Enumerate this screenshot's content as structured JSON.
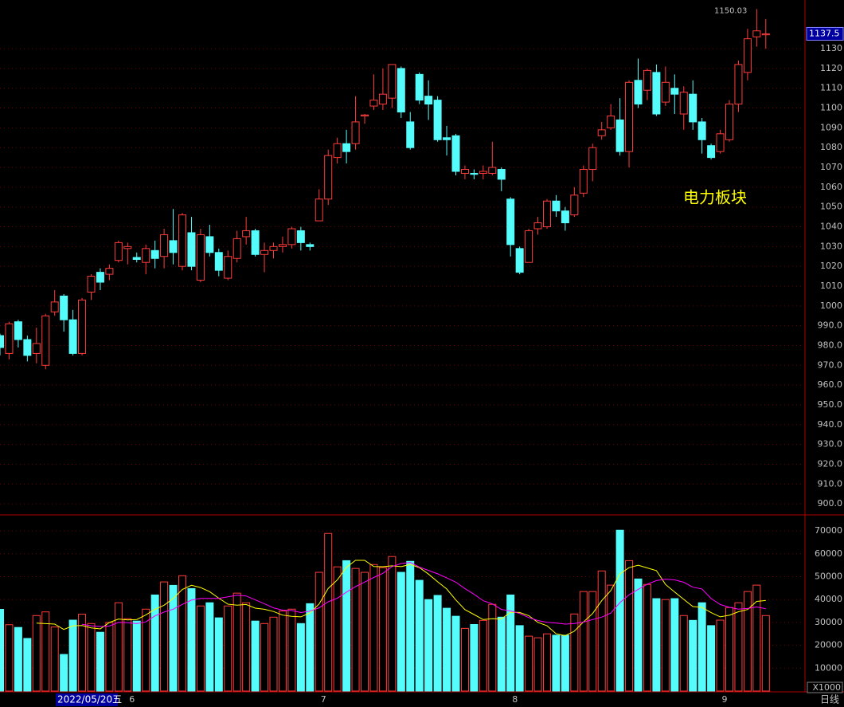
{
  "chart_data": [
    {
      "type": "candlestick",
      "categories": [
        null,
        null,
        null,
        null,
        null,
        null,
        null,
        null,
        null,
        null,
        null,
        null,
        null,
        null,
        "6",
        null,
        null,
        null,
        null,
        null,
        null,
        null,
        null,
        null,
        null,
        null,
        null,
        null,
        null,
        null,
        null,
        null,
        null,
        null,
        null,
        "7",
        null,
        null,
        null,
        null,
        null,
        null,
        null,
        null,
        null,
        null,
        null,
        null,
        null,
        null,
        null,
        null,
        null,
        null,
        null,
        null,
        "8",
        null,
        null,
        null,
        null,
        null,
        null,
        null,
        null,
        null,
        null,
        null,
        null,
        null,
        null,
        null,
        null,
        null,
        null,
        null,
        null,
        null,
        null,
        "9",
        null,
        null,
        null,
        null,
        null
      ],
      "open": [
        985,
        976,
        992,
        983,
        976,
        970,
        997,
        1005,
        993,
        976,
        1007,
        1017,
        1016,
        1023,
        1029,
        1024.5,
        1022,
        1028,
        1025,
        1033,
        1020,
        1037,
        1013,
        1035,
        1027,
        1014,
        1024,
        1035,
        1038,
        1026,
        1028,
        1030,
        1031,
        1038,
        1031,
        1043,
        1054,
        1075,
        1082,
        1082,
        1096,
        1101,
        1102,
        1105,
        1120,
        1093,
        1117,
        1106,
        1104,
        1085,
        1086,
        1067,
        1067,
        1067,
        1067,
        1069,
        1054,
        1029,
        1022,
        1039,
        1040,
        1053,
        1048,
        1046,
        1057,
        1069,
        1086,
        1090,
        1094,
        1078,
        1114,
        1109,
        1118,
        1103,
        1110,
        1097,
        1107,
        1093,
        1081,
        1078,
        1084,
        1102,
        1118,
        1136,
        1137
      ],
      "high": [
        986,
        992,
        993,
        985,
        989,
        996,
        1008,
        1006,
        998,
        1004,
        1016,
        1019,
        1021,
        1033,
        1032,
        1027,
        1031,
        1033,
        1039,
        1049,
        1047,
        1045,
        1039,
        1041,
        1029,
        1028,
        1038,
        1045,
        1039,
        1032,
        1032,
        1035,
        1040,
        1040,
        1032,
        1059,
        1079,
        1085,
        1089,
        1106,
        1097,
        1117,
        1120,
        1122,
        1121,
        1098,
        1118,
        1114,
        1106,
        1091,
        1087,
        1071,
        1069,
        1071,
        1083,
        1070,
        1055,
        1030,
        1039,
        1045,
        1054,
        1056,
        1050,
        1060,
        1071,
        1082,
        1093,
        1102,
        1105,
        1114,
        1125,
        1120,
        1122,
        1121,
        1117,
        1111,
        1114,
        1095,
        1082,
        1089,
        1104,
        1124,
        1140,
        1150.03,
        1145
      ],
      "low": [
        975,
        973,
        979,
        972,
        971,
        968,
        995,
        987,
        975,
        975,
        1003,
        1008,
        1013,
        1022,
        1021,
        1022,
        1016,
        1019,
        1019,
        1021,
        1018,
        1018,
        1012,
        1025,
        1015,
        1013,
        1022,
        1031,
        1025,
        1017,
        1024,
        1027,
        1029,
        1028,
        1028,
        1043,
        1051,
        1072,
        1072,
        1079,
        1092,
        1099,
        1099,
        1100,
        1095,
        1079,
        1102,
        1094,
        1083,
        1076,
        1066,
        1064,
        1064,
        1064,
        1066,
        1058,
        1025,
        1016,
        1022,
        1036,
        1039,
        1045,
        1038,
        1045,
        1055,
        1063,
        1084,
        1089,
        1076,
        1070,
        1100,
        1104,
        1096,
        1101,
        1097,
        1089,
        1089,
        1077,
        1074,
        1077,
        1083,
        1098,
        1114,
        1131,
        1130
      ],
      "close": [
        979,
        991,
        983,
        975,
        981,
        995,
        1002,
        993,
        976,
        1003,
        1015,
        1012,
        1019,
        1032,
        1030,
        1023.5,
        1029,
        1024,
        1036,
        1027,
        1046,
        1020,
        1036,
        1027,
        1018,
        1025,
        1034,
        1038,
        1026,
        1028,
        1030,
        1031,
        1039,
        1032,
        1030,
        1054,
        1076,
        1082,
        1078,
        1093,
        1096.5,
        1104,
        1107,
        1122,
        1098,
        1080,
        1104,
        1102,
        1084,
        1084,
        1068,
        1069,
        1066.5,
        1068,
        1070,
        1064,
        1031,
        1017,
        1038,
        1042,
        1053,
        1048,
        1042,
        1056,
        1069,
        1080,
        1089,
        1096,
        1078,
        1113,
        1102,
        1119,
        1097,
        1113,
        1107,
        1108,
        1093,
        1084,
        1075,
        1087,
        1102,
        1122,
        1135,
        1139,
        1137.5
      ],
      "up_color": "#ff3c3c",
      "down_color": "#54fcfc",
      "ylim": [
        894.8,
        1154.6
      ],
      "yticks": [
        {
          "value": 900,
          "label": "900.0"
        },
        {
          "value": 910,
          "label": "910.0"
        },
        {
          "value": 920,
          "label": "920.0"
        },
        {
          "value": 930,
          "label": "930.0"
        },
        {
          "value": 940,
          "label": "940.0"
        },
        {
          "value": 950,
          "label": "950.0"
        },
        {
          "value": 960,
          "label": "960.0"
        },
        {
          "value": 970,
          "label": "970.0"
        },
        {
          "value": 980,
          "label": "980.0"
        },
        {
          "value": 990,
          "label": "990.0"
        },
        1000,
        1010,
        1020,
        1030,
        1040,
        1050,
        1060,
        1070,
        1080,
        1090,
        1100,
        1110,
        1120,
        1130
      ],
      "grid": true,
      "last_price": 1137.5,
      "max_label": 1150.03,
      "cursor_date": "2022/05/20五",
      "annotation": "电力板块",
      "period": "日线"
    },
    {
      "type": "bar",
      "values": [
        35700,
        29000,
        27800,
        23000,
        33000,
        34600,
        28000,
        16000,
        31000,
        33600,
        29500,
        25700,
        30000,
        38600,
        31600,
        30600,
        35800,
        42000,
        47700,
        46200,
        50400,
        44800,
        37200,
        38600,
        32000,
        37200,
        42800,
        38600,
        30600,
        29500,
        32300,
        35000,
        35800,
        29500,
        38200,
        51900,
        68900,
        54300,
        57000,
        53600,
        51900,
        55300,
        54000,
        58800,
        51900,
        56700,
        48400,
        40000,
        41800,
        36200,
        32700,
        27400,
        29100,
        30900,
        37900,
        32300,
        42000,
        28600,
        24000,
        23300,
        25000,
        24400,
        24400,
        33700,
        43500,
        43500,
        52500,
        46300,
        70300,
        57000,
        49000,
        46600,
        40400,
        40000,
        40400,
        33000,
        30900,
        38600,
        28600,
        31000,
        36500,
        38600,
        43500,
        46300,
        33000
      ],
      "ylim": [
        0,
        76300
      ],
      "yticks": [
        10000,
        20000,
        30000,
        40000,
        50000,
        60000,
        70000
      ],
      "grid": true,
      "unit_label": "X1000",
      "ma": [
        {
          "period": 5,
          "color": "#ffff00"
        },
        {
          "period": 10,
          "color": "#ff00ff"
        }
      ]
    }
  ]
}
